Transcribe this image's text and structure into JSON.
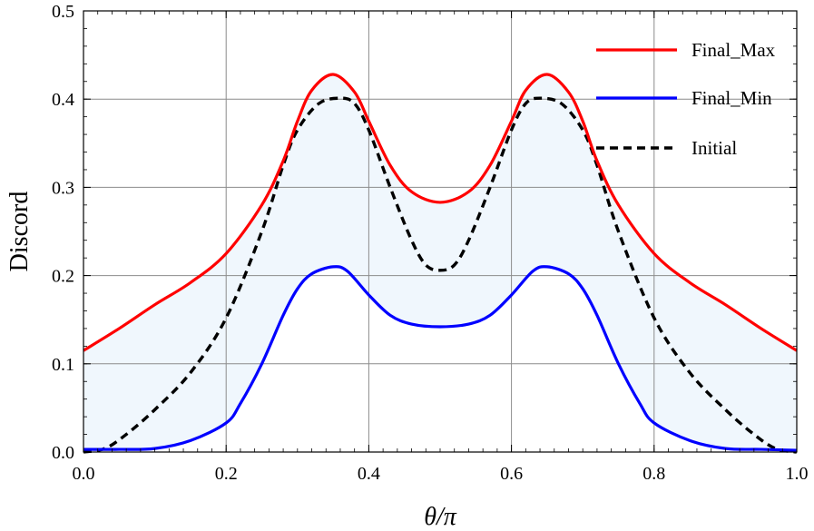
{
  "chart_data": {
    "type": "line",
    "title": "",
    "xlabel": "θ/π",
    "ylabel": "Discord",
    "xlim": [
      0.0,
      1.0
    ],
    "ylim": [
      0.0,
      0.5
    ],
    "xticks": [
      0.0,
      0.2,
      0.4,
      0.6,
      0.8,
      1.0
    ],
    "xtick_labels": [
      "0.0",
      "0.2",
      "0.4",
      "0.6",
      "0.8",
      "1.0"
    ],
    "yticks": [
      0.0,
      0.1,
      0.2,
      0.3,
      0.4,
      0.5
    ],
    "ytick_labels": [
      "0.0",
      "0.1",
      "0.2",
      "0.3",
      "0.4",
      "0.5"
    ],
    "grid": true,
    "legend_position": "top-right",
    "fill_between": {
      "upper": "Final_Max",
      "lower": "Final_Min",
      "color": "#f0f7fd"
    },
    "series": [
      {
        "name": "Final_Max",
        "color": "#ff0000",
        "style": "solid",
        "x": [
          0.0,
          0.05,
          0.1,
          0.15,
          0.2,
          0.25,
          0.28,
          0.3,
          0.32,
          0.35,
          0.38,
          0.4,
          0.43,
          0.46,
          0.5,
          0.54,
          0.57,
          0.6,
          0.62,
          0.65,
          0.68,
          0.7,
          0.72,
          0.75,
          0.8,
          0.85,
          0.9,
          0.95,
          1.0
        ],
        "y": [
          0.115,
          0.14,
          0.167,
          0.192,
          0.225,
          0.28,
          0.33,
          0.375,
          0.41,
          0.428,
          0.408,
          0.375,
          0.325,
          0.295,
          0.283,
          0.295,
          0.325,
          0.375,
          0.41,
          0.428,
          0.408,
          0.375,
          0.33,
          0.28,
          0.225,
          0.192,
          0.167,
          0.14,
          0.115
        ]
      },
      {
        "name": "Final_Min",
        "color": "#0000ff",
        "style": "solid",
        "x": [
          0.0,
          0.05,
          0.1,
          0.15,
          0.2,
          0.22,
          0.25,
          0.28,
          0.3,
          0.32,
          0.35,
          0.37,
          0.4,
          0.43,
          0.46,
          0.5,
          0.54,
          0.57,
          0.6,
          0.63,
          0.65,
          0.68,
          0.7,
          0.72,
          0.75,
          0.78,
          0.8,
          0.85,
          0.9,
          0.95,
          1.0
        ],
        "y": [
          0.003,
          0.003,
          0.004,
          0.013,
          0.033,
          0.055,
          0.1,
          0.155,
          0.185,
          0.202,
          0.21,
          0.205,
          0.178,
          0.155,
          0.145,
          0.142,
          0.145,
          0.155,
          0.178,
          0.205,
          0.21,
          0.202,
          0.185,
          0.155,
          0.1,
          0.055,
          0.033,
          0.013,
          0.004,
          0.003,
          0.002
        ]
      },
      {
        "name": "Initial",
        "color": "#000000",
        "style": "dashed",
        "x": [
          0.0,
          0.03,
          0.06,
          0.1,
          0.15,
          0.2,
          0.25,
          0.28,
          0.3,
          0.33,
          0.36,
          0.38,
          0.4,
          0.43,
          0.46,
          0.48,
          0.5,
          0.52,
          0.54,
          0.57,
          0.6,
          0.62,
          0.64,
          0.67,
          0.7,
          0.72,
          0.75,
          0.8,
          0.85,
          0.9,
          0.94,
          0.97,
          1.0
        ],
        "y": [
          0.0,
          0.004,
          0.02,
          0.048,
          0.09,
          0.152,
          0.25,
          0.325,
          0.365,
          0.395,
          0.401,
          0.395,
          0.365,
          0.3,
          0.24,
          0.212,
          0.206,
          0.212,
          0.24,
          0.3,
          0.365,
          0.395,
          0.401,
          0.395,
          0.365,
          0.325,
          0.25,
          0.152,
          0.09,
          0.048,
          0.02,
          0.004,
          0.0
        ]
      }
    ]
  }
}
